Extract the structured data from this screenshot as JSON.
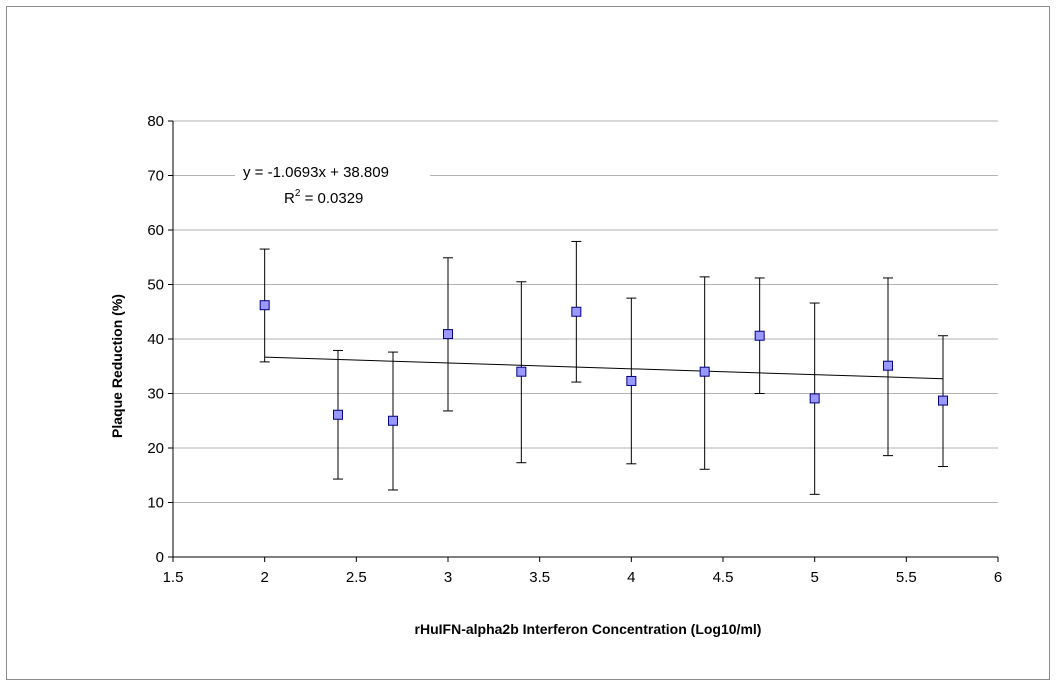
{
  "chart_data": {
    "type": "scatter",
    "title": "",
    "xlabel": "rHuIFN-alpha2b Interferon Concentration (Log10/ml)",
    "ylabel": "Plaque Reduction (%)",
    "xlim": [
      1.5,
      6
    ],
    "ylim": [
      0,
      80
    ],
    "xticks": [
      1.5,
      2,
      2.5,
      3,
      3.5,
      4,
      4.5,
      5,
      5.5,
      6
    ],
    "yticks": [
      0,
      10,
      20,
      30,
      40,
      50,
      60,
      70,
      80
    ],
    "xtick_labels": [
      "1.5",
      "2",
      "2.5",
      "3",
      "3.5",
      "4",
      "4.5",
      "5",
      "5.5",
      "6"
    ],
    "ytick_labels": [
      "0",
      "10",
      "20",
      "30",
      "40",
      "50",
      "60",
      "70",
      "80"
    ],
    "grid": "horizontal",
    "legend": "none",
    "marker_color": "#9999ff",
    "points": [
      {
        "x": 2.0,
        "y": 46.2,
        "err_low": 35.8,
        "err_high": 56.5
      },
      {
        "x": 2.4,
        "y": 26.1,
        "err_low": 14.3,
        "err_high": 37.9
      },
      {
        "x": 2.7,
        "y": 25.0,
        "err_low": 12.3,
        "err_high": 37.6
      },
      {
        "x": 3.0,
        "y": 40.9,
        "err_low": 26.8,
        "err_high": 54.9
      },
      {
        "x": 3.4,
        "y": 34.0,
        "err_low": 17.3,
        "err_high": 50.5
      },
      {
        "x": 3.7,
        "y": 45.0,
        "err_low": 32.1,
        "err_high": 57.9
      },
      {
        "x": 4.0,
        "y": 32.3,
        "err_low": 17.1,
        "err_high": 47.5
      },
      {
        "x": 4.4,
        "y": 34.0,
        "err_low": 16.1,
        "err_high": 51.4
      },
      {
        "x": 4.7,
        "y": 40.6,
        "err_low": 30.0,
        "err_high": 51.2
      },
      {
        "x": 5.0,
        "y": 29.1,
        "err_low": 11.5,
        "err_high": 46.6
      },
      {
        "x": 5.4,
        "y": 35.1,
        "err_low": 18.6,
        "err_high": 51.2
      },
      {
        "x": 5.7,
        "y": 28.7,
        "err_low": 16.6,
        "err_high": 40.6
      }
    ],
    "trendline": {
      "type": "linear",
      "slope": -1.0693,
      "intercept": 38.809,
      "x_range": [
        2.0,
        5.7
      ],
      "equation": "y = -1.0693x + 38.809",
      "r2_prefix": "R",
      "r2_sup": "2",
      "r2_value": " = 0.0329"
    }
  }
}
